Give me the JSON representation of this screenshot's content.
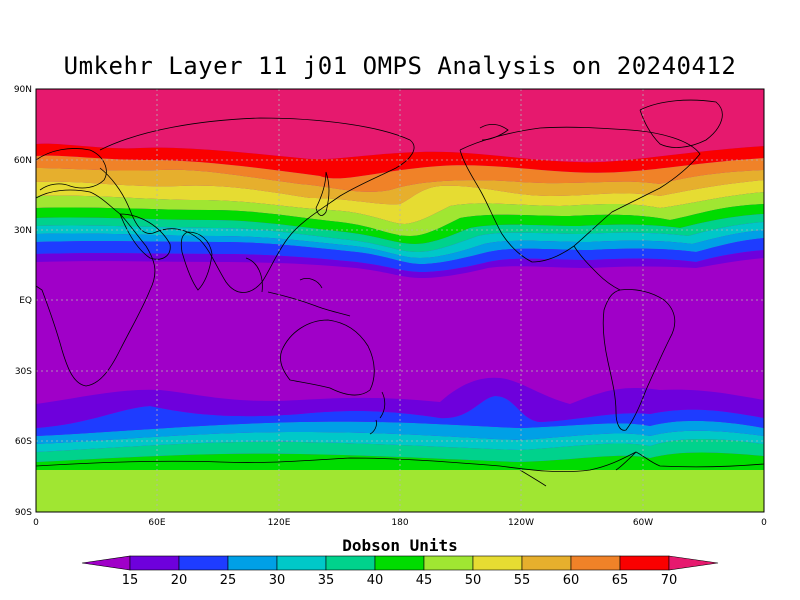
{
  "title": "Umkehr Layer 11 j01 OMPS Analysis on 20240412",
  "map": {
    "lat_ticks": [
      "90N",
      "60N",
      "30N",
      "EQ",
      "30S",
      "60S",
      "90S"
    ],
    "lon_ticks": [
      "0",
      "60E",
      "120E",
      "180",
      "120W",
      "60W",
      "0"
    ],
    "grid": "dotted",
    "outline_color": "#000000"
  },
  "legend": {
    "title": "Dobson Units",
    "levels": [
      "15",
      "20",
      "25",
      "30",
      "35",
      "40",
      "45",
      "50",
      "55",
      "60",
      "65",
      "70"
    ],
    "colors": [
      "#a000c8",
      "#6e00dc",
      "#1e3cff",
      "#00a0e6",
      "#00c8c8",
      "#00d28c",
      "#00dc00",
      "#a0e632",
      "#e6dc32",
      "#e6af2d",
      "#f08228",
      "#fa0000",
      "#e6196e"
    ]
  },
  "chart_data": {
    "type": "heatmap",
    "title": "Umkehr Layer 11 j01 OMPS Analysis on 20240412",
    "units": "Dobson Units",
    "xlim": [
      0,
      360
    ],
    "ylim": [
      -90,
      90
    ],
    "x_ticks": [
      0,
      60,
      120,
      180,
      240,
      300,
      360
    ],
    "y_ticks": [
      90,
      60,
      30,
      0,
      -30,
      -60,
      -90
    ],
    "levels": [
      15,
      20,
      25,
      30,
      35,
      40,
      45,
      50,
      55,
      60,
      65,
      70
    ],
    "zonal_pattern": [
      {
        "lat_range": [
          60,
          90
        ],
        "value": 70
      },
      {
        "lat_range": [
          30,
          60
        ],
        "value": 50
      },
      {
        "lat_range": [
          -30,
          30
        ],
        "value": 15
      },
      {
        "lat_range": [
          -60,
          -30
        ],
        "value": 22
      },
      {
        "lat_range": [
          -90,
          -60
        ],
        "value": 47
      }
    ]
  }
}
